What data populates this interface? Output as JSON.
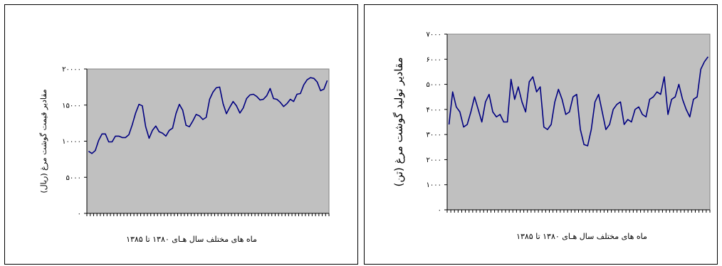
{
  "chart_data": [
    {
      "type": "line",
      "title": "",
      "xlabel": "ماه های مختلف سال هـای ۱۳۸۰ تا ۱۳۸۵",
      "ylabel": "مقادیر قیمت گوشت مرغ (ریال)",
      "ylim": [
        0,
        20000
      ],
      "yticks": [
        0,
        5000,
        10000,
        15000,
        20000
      ],
      "ytick_labels": [
        "۰",
        "۵۰۰۰",
        "۱۰۰۰۰",
        "۱۵۰۰۰",
        "۲۰۰۰۰"
      ],
      "grid": false,
      "legend": "none",
      "series": [
        {
          "values": [
            8600,
            8300,
            8700,
            10100,
            11000,
            11000,
            9900,
            9900,
            10700,
            10700,
            10500,
            10500,
            10900,
            12300,
            13900,
            15100,
            14900,
            12000,
            10400,
            11500,
            12100,
            11300,
            11100,
            10700,
            11500,
            11800,
            13800,
            15100,
            14300,
            12200,
            12000,
            12800,
            13700,
            13500,
            13000,
            13300,
            15800,
            16800,
            17400,
            17500,
            15200,
            13800,
            14700,
            15500,
            14900,
            13900,
            14600,
            15900,
            16400,
            16500,
            16200,
            15700,
            15800,
            16300,
            17300,
            15900,
            15800,
            15400,
            14800,
            15200,
            15800,
            15500,
            16500,
            16600,
            17800,
            18500,
            18800,
            18700,
            18200,
            17000,
            17200,
            18400
          ]
        }
      ]
    },
    {
      "type": "line",
      "title": "",
      "xlabel": "ماه های مختلف سال هـای ۱۳۸۰ تا ۱۳۸۵",
      "ylabel": "مقادیر تولید گوشت مرغ (تن)",
      "ylim": [
        0,
        7000
      ],
      "yticks": [
        0,
        1000,
        2000,
        3000,
        4000,
        5000,
        6000,
        7000
      ],
      "ytick_labels": [
        "۰",
        "۱۰۰۰",
        "۲۰۰۰",
        "۳۰۰۰",
        "۴۰۰۰",
        "۵۰۰۰",
        "۶۰۰۰",
        "۷۰۰۰"
      ],
      "grid": false,
      "legend": "none",
      "series": [
        {
          "values": [
            3400,
            4700,
            4100,
            3900,
            3300,
            3400,
            3900,
            4500,
            4000,
            3500,
            4300,
            4600,
            3900,
            3700,
            3800,
            3500,
            3500,
            5200,
            4400,
            4900,
            4300,
            3900,
            5100,
            5300,
            4700,
            4900,
            3300,
            3200,
            3400,
            4300,
            4800,
            4400,
            3800,
            3900,
            4500,
            4600,
            3200,
            2600,
            2550,
            3200,
            4300,
            4600,
            3900,
            3200,
            3400,
            4000,
            4200,
            4300,
            3400,
            3600,
            3500,
            4000,
            4100,
            3800,
            3700,
            4400,
            4500,
            4700,
            4600,
            5300,
            3800,
            4400,
            4500,
            5000,
            4400,
            4000,
            3700,
            4400,
            4500,
            5600,
            5900,
            6100
          ]
        }
      ]
    }
  ]
}
